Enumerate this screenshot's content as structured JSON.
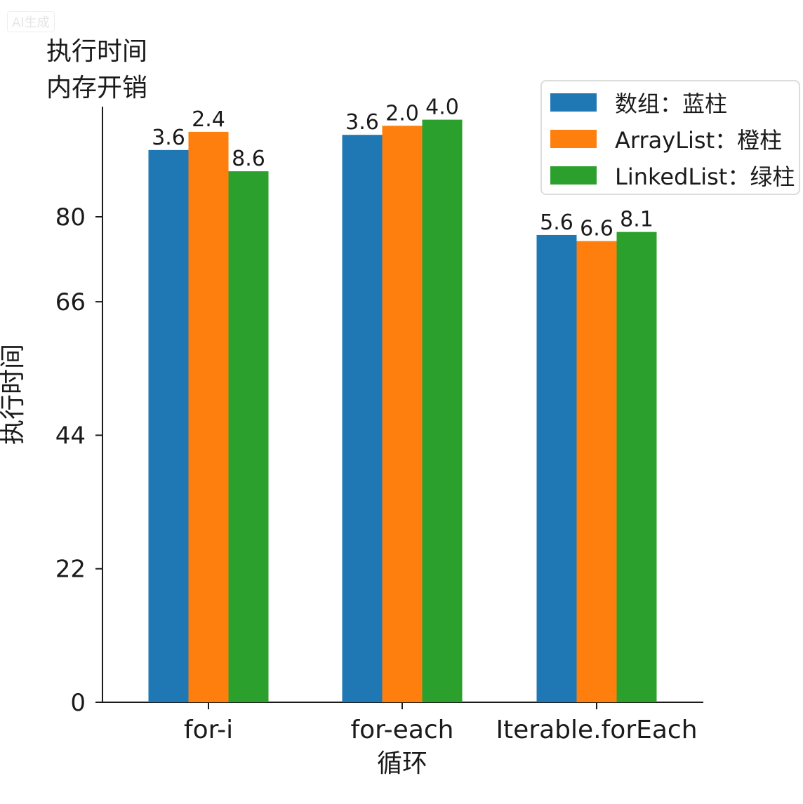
{
  "watermark": "AI生成",
  "corner_title": [
    "执行时间",
    "内存开销"
  ],
  "chart_data": {
    "type": "bar",
    "title": "",
    "xlabel": "",
    "ylabel": "执行时间",
    "categories": [
      [
        "for-i"
      ],
      [
        "for-each",
        "循环"
      ],
      [
        "Iterable.forEach"
      ]
    ],
    "ylim": [
      0,
      96
    ],
    "yticks": [
      0,
      22,
      44,
      66,
      80
    ],
    "series": [
      {
        "name": "数组：蓝柱",
        "color": "#1f77b4",
        "values": [
          91,
          93.5,
          77
        ],
        "labels": [
          "3.6",
          "3.6",
          "5.6"
        ]
      },
      {
        "name": "ArrayList：橙柱",
        "color": "#ff7f0e",
        "values": [
          94,
          95,
          76
        ],
        "labels": [
          "2.4",
          "2.0",
          "6.6"
        ]
      },
      {
        "name": "LinkedList：绿柱",
        "color": "#2ca02c",
        "values": [
          87.5,
          96,
          77.5
        ],
        "labels": [
          "8.6",
          "4.0",
          "8.1"
        ]
      }
    ],
    "legend_position": "top-right"
  }
}
